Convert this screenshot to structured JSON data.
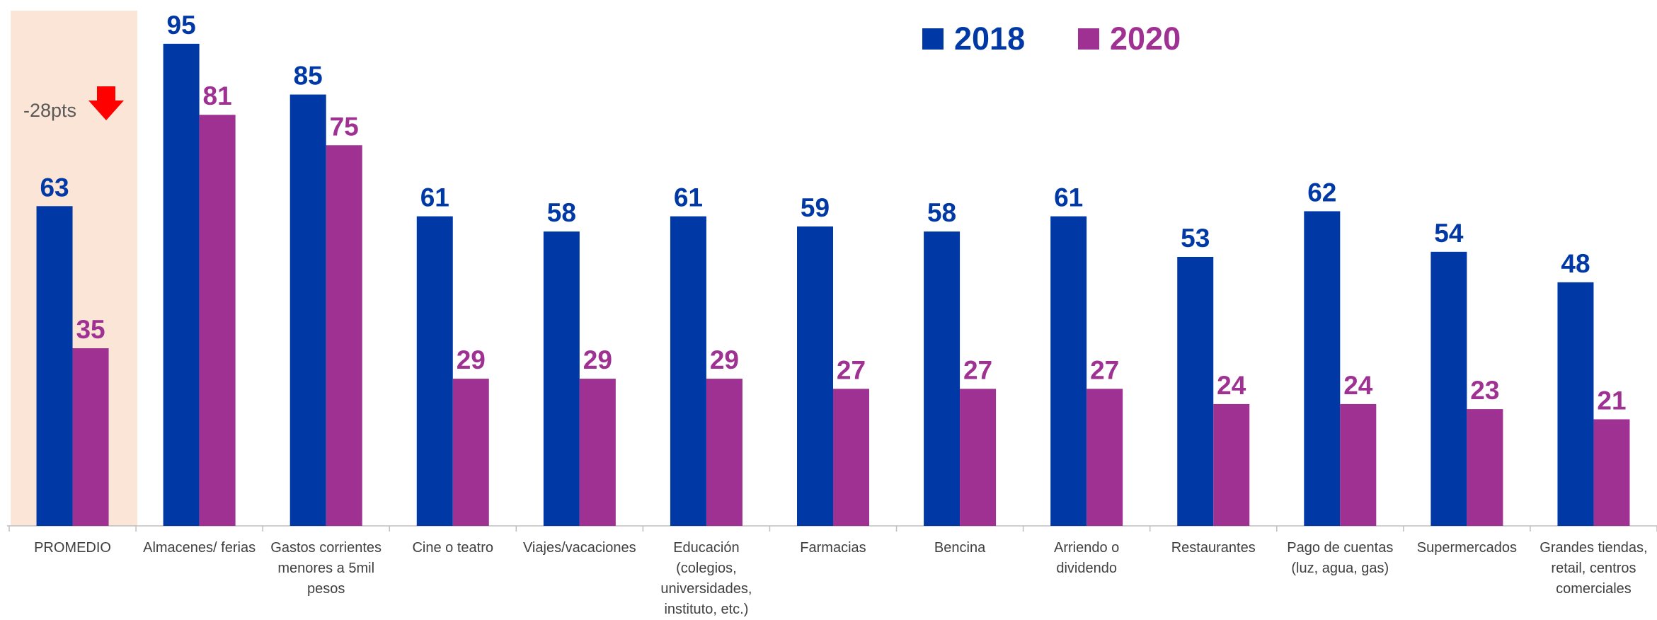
{
  "chart_data": {
    "type": "bar",
    "categories": [
      "PROMEDIO",
      "Almacenes/ ferias",
      "Gastos corrientes menores a 5mil pesos",
      "Cine o teatro",
      "Viajes/vacaciones",
      "Educación (colegios, universidades, instituto, etc.)",
      "Farmacias",
      "Bencina",
      "Arriendo o dividendo",
      "Restaurantes",
      "Pago de cuentas (luz, agua, gas)",
      "Supermercados",
      "Grandes tiendas, retail, centros comerciales"
    ],
    "series": [
      {
        "name": "2018",
        "color": "#0039a6",
        "values": [
          63,
          95,
          85,
          61,
          58,
          61,
          59,
          58,
          61,
          53,
          62,
          54,
          48
        ]
      },
      {
        "name": "2020",
        "color": "#9e3192",
        "values": [
          35,
          81,
          75,
          29,
          29,
          29,
          27,
          27,
          27,
          24,
          24,
          23,
          21
        ]
      }
    ],
    "ylim": [
      0,
      100
    ],
    "annotations": [
      "-28pts"
    ],
    "legend": "top-right"
  }
}
